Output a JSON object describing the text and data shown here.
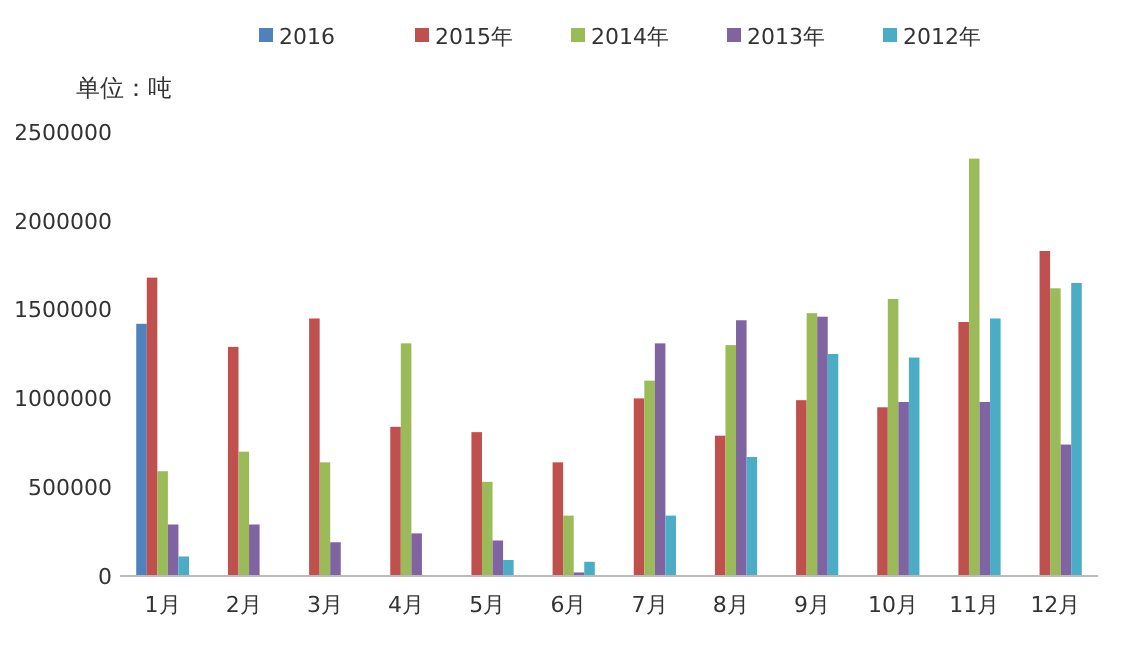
{
  "chart_data": {
    "type": "bar",
    "ylabel": "单位：吨",
    "categories": [
      "1月",
      "2月",
      "3月",
      "4月",
      "5月",
      "6月",
      "7月",
      "8月",
      "9月",
      "10月",
      "11月",
      "12月"
    ],
    "series": [
      {
        "name": "2016",
        "color": "#4f81bd",
        "values": [
          1420000,
          null,
          null,
          null,
          null,
          null,
          null,
          null,
          null,
          null,
          null,
          null
        ]
      },
      {
        "name": "2015年",
        "color": "#c0504d",
        "values": [
          1680000,
          1290000,
          1450000,
          840000,
          810000,
          640000,
          1000000,
          790000,
          990000,
          950000,
          1430000,
          1830000
        ]
      },
      {
        "name": "2014年",
        "color": "#9bbb59",
        "values": [
          590000,
          700000,
          640000,
          1310000,
          530000,
          340000,
          1100000,
          1300000,
          1480000,
          1560000,
          2350000,
          1620000
        ]
      },
      {
        "name": "2013年",
        "color": "#8064a2",
        "values": [
          290000,
          290000,
          190000,
          240000,
          200000,
          20000,
          1310000,
          1440000,
          1460000,
          980000,
          980000,
          740000
        ]
      },
      {
        "name": "2012年",
        "color": "#4bacc6",
        "values": [
          110000,
          5000,
          5000,
          5000,
          90000,
          80000,
          340000,
          670000,
          1250000,
          1230000,
          1450000,
          1650000
        ]
      }
    ],
    "ylim": [
      0,
      2500000
    ],
    "yticks": [
      0,
      500000,
      1000000,
      1500000,
      2000000,
      2500000
    ],
    "grid": false,
    "legend": "top"
  }
}
